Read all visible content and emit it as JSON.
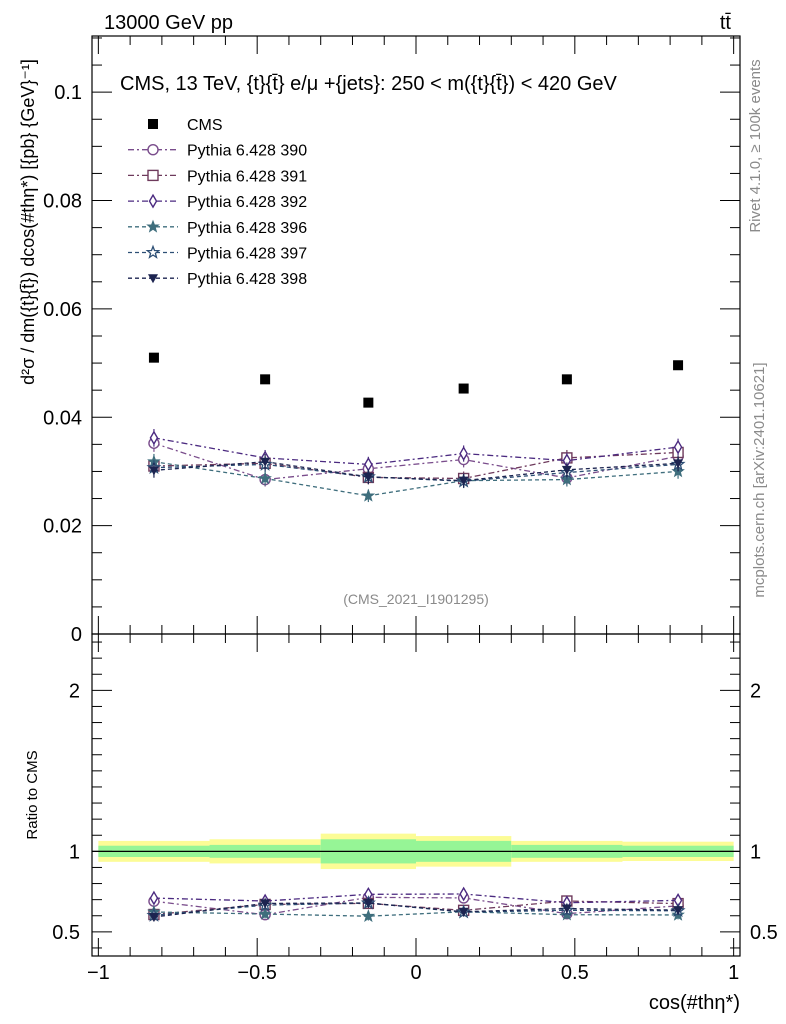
{
  "header": {
    "energy_label": "13000 GeV pp",
    "process_label": "tt̄",
    "title": "CMS, 13 TeV, {t}{t̄} e/μ +{jets}: 250 < m({t}{t̄}) < 420 GeV",
    "watermark": "(CMS_2021_I1901295)",
    "side_rivet": "Rivet 4.1.0, ≥ 100k events",
    "side_mcplots": "mcplots.cern.ch [arXiv:2401.10621]"
  },
  "chart_data": [
    {
      "type": "scatter",
      "panel": "main",
      "ylabel": "#frac{d^{2}σ}{dm({t}{t̄}) dcos(#thη^{*})} [{pb} {GeV}^{-1}]",
      "ylabel_display": "d²σ / dm({t}{t̄}) dcos(#thη*) [{pb} {GeV}⁻¹]",
      "ylim": [
        0,
        0.11
      ],
      "yticks": [
        0,
        0.02,
        0.04,
        0.06,
        0.08,
        0.1
      ],
      "ytick_labels": [
        "0",
        "0.02",
        "0.04",
        "0.06",
        "0.08",
        "0.1"
      ],
      "x": [
        -0.825,
        -0.475,
        -0.15,
        0.15,
        0.475,
        0.825
      ],
      "series": [
        {
          "name": "CMS",
          "marker": "square-filled",
          "color": "#000000",
          "values": [
            0.051,
            0.047,
            0.0427,
            0.0453,
            0.047,
            0.0496
          ]
        },
        {
          "name": "Pythia 6.428 390",
          "marker": "circle-open",
          "color": "#7a4d8c",
          "dash": "6,3,2,3",
          "values": [
            0.0352,
            0.0285,
            0.0305,
            0.0322,
            0.0288,
            0.0328
          ]
        },
        {
          "name": "Pythia 6.428 391",
          "marker": "square-open",
          "color": "#6e3a5c",
          "dash": "6,3,2,3",
          "values": [
            0.031,
            0.0315,
            0.0289,
            0.0287,
            0.0325,
            0.0335
          ]
        },
        {
          "name": "Pythia 6.428 392",
          "marker": "diamond-open",
          "color": "#4b2a80",
          "dash": "6,3,2,3",
          "values": [
            0.0362,
            0.0325,
            0.0313,
            0.0333,
            0.032,
            0.0345
          ]
        },
        {
          "name": "Pythia 6.428 396",
          "marker": "star-filled",
          "color": "#3f6e7d",
          "dash": "4,3",
          "values": [
            0.0318,
            0.0287,
            0.0255,
            0.0283,
            0.0285,
            0.03
          ]
        },
        {
          "name": "Pythia 6.428 397",
          "marker": "star-open",
          "color": "#2d4f75",
          "dash": "4,3",
          "values": [
            0.0307,
            0.0313,
            0.029,
            0.0282,
            0.0298,
            0.0313
          ]
        },
        {
          "name": "Pythia 6.428 398",
          "marker": "triangle-down-filled",
          "color": "#1c2450",
          "dash": "4,3",
          "values": [
            0.0302,
            0.0318,
            0.029,
            0.0283,
            0.0303,
            0.0315
          ]
        }
      ],
      "legend": "top-left"
    },
    {
      "type": "scatter",
      "panel": "ratio",
      "ylabel": "Ratio to CMS",
      "xlabel": "cos(#thη^{*})",
      "xlabel_display": "cos(#thη*)",
      "xlim": [
        -1.02,
        1.02
      ],
      "xticks": [
        -1,
        -0.5,
        0,
        0.5,
        1
      ],
      "xtick_labels": [
        "−1",
        "−0.5",
        "0",
        "0.5",
        "1"
      ],
      "ylim": [
        0.35,
        2.35
      ],
      "yticks": [
        0.5,
        1,
        2
      ],
      "ytick_labels": [
        "0.5",
        "1",
        "2"
      ],
      "bin_edges": [
        -1,
        -0.65,
        -0.3,
        0,
        0.3,
        0.65,
        1
      ],
      "band_inner": [
        0.035,
        0.04,
        0.075,
        0.065,
        0.04,
        0.035
      ],
      "band_outer": [
        0.065,
        0.075,
        0.11,
        0.095,
        0.065,
        0.06
      ],
      "reference": 1
    }
  ]
}
